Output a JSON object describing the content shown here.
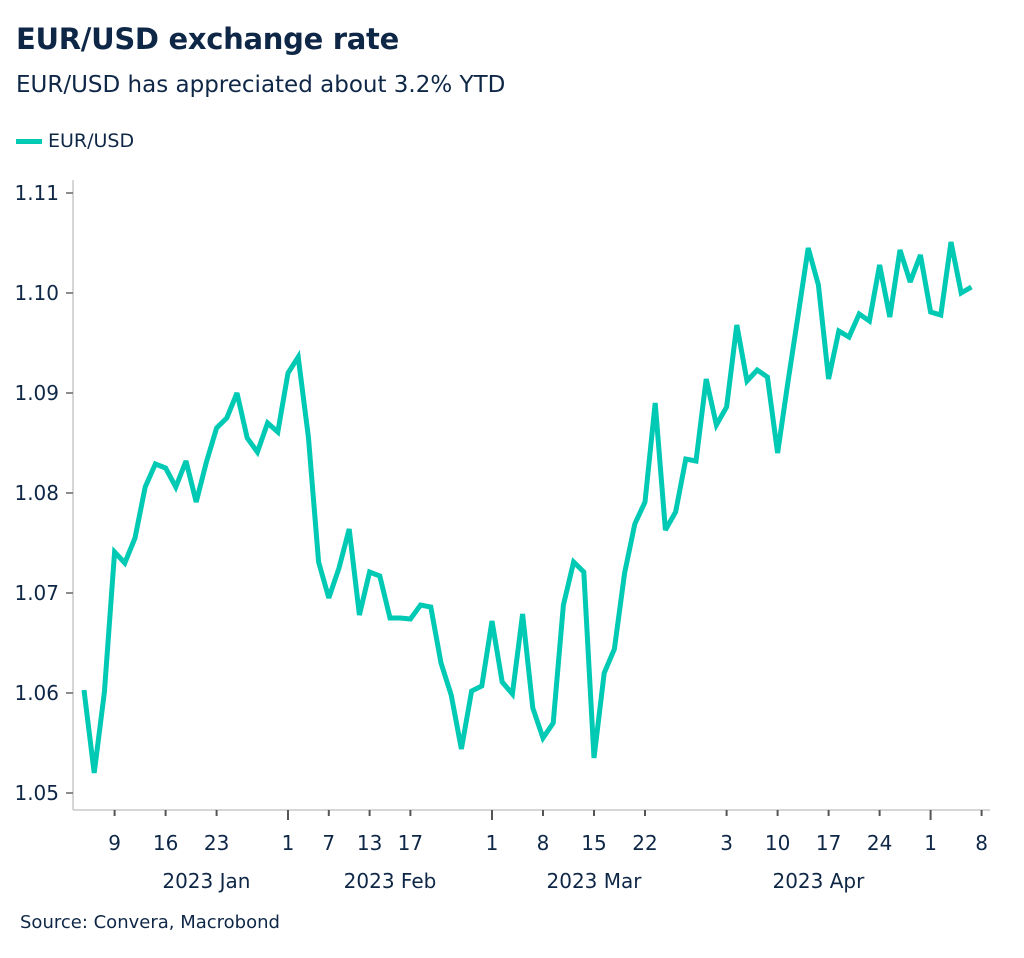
{
  "chart_data": {
    "type": "line",
    "title": "EUR/USD exchange rate",
    "subtitle": "EUR/USD has appreciated about 3.2% YTD",
    "source": "Source: Convera, Macrobond",
    "legend": "top-left",
    "grid": false,
    "line_color": "#00c9b4",
    "text_color": "#0f2747",
    "ylim": [
      1.05,
      1.11
    ],
    "yticks": [
      "1.05",
      "1.06",
      "1.07",
      "1.08",
      "1.09",
      "1.10",
      "1.11"
    ],
    "xticks": [
      {
        "date": "2023-01-09",
        "label": "9"
      },
      {
        "date": "2023-01-16",
        "label": "16"
      },
      {
        "date": "2023-01-23",
        "label": "23"
      },
      {
        "date": "2023-02-01",
        "label": "1"
      },
      {
        "date": "2023-02-07",
        "label": "7"
      },
      {
        "date": "2023-02-13",
        "label": "13"
      },
      {
        "date": "2023-02-17",
        "label": "17"
      },
      {
        "date": "2023-03-01",
        "label": "1"
      },
      {
        "date": "2023-03-08",
        "label": "8"
      },
      {
        "date": "2023-03-15",
        "label": "15"
      },
      {
        "date": "2023-03-22",
        "label": "22"
      },
      {
        "date": "2023-04-03",
        "label": "3"
      },
      {
        "date": "2023-04-10",
        "label": "10"
      },
      {
        "date": "2023-04-17",
        "label": "17"
      },
      {
        "date": "2023-04-24",
        "label": "24"
      },
      {
        "date": "2023-05-01",
        "label": "1"
      },
      {
        "date": "2023-05-08",
        "label": "8"
      }
    ],
    "month_labels": [
      {
        "label": "2023 Jan",
        "date": "2023-01-20"
      },
      {
        "label": "2023 Feb",
        "date": "2023-02-15"
      },
      {
        "label": "2023 Mar",
        "date": "2023-03-15"
      },
      {
        "label": "2023 Apr",
        "date": "2023-04-14"
      }
    ],
    "series": [
      {
        "name": "EUR/USD",
        "x": [
          "2023-01-04",
          "2023-01-05",
          "2023-01-06",
          "2023-01-09",
          "2023-01-10",
          "2023-01-11",
          "2023-01-12",
          "2023-01-13",
          "2023-01-16",
          "2023-01-17",
          "2023-01-18",
          "2023-01-19",
          "2023-01-20",
          "2023-01-23",
          "2023-01-24",
          "2023-01-25",
          "2023-01-26",
          "2023-01-27",
          "2023-01-30",
          "2023-01-31",
          "2023-02-01",
          "2023-02-02",
          "2023-02-03",
          "2023-02-06",
          "2023-02-07",
          "2023-02-08",
          "2023-02-09",
          "2023-02-10",
          "2023-02-13",
          "2023-02-14",
          "2023-02-15",
          "2023-02-16",
          "2023-02-17",
          "2023-02-20",
          "2023-02-21",
          "2023-02-22",
          "2023-02-23",
          "2023-02-24",
          "2023-02-27",
          "2023-02-28",
          "2023-03-01",
          "2023-03-02",
          "2023-03-03",
          "2023-03-06",
          "2023-03-07",
          "2023-03-08",
          "2023-03-09",
          "2023-03-10",
          "2023-03-13",
          "2023-03-14",
          "2023-03-15",
          "2023-03-16",
          "2023-03-17",
          "2023-03-20",
          "2023-03-21",
          "2023-03-22",
          "2023-03-23",
          "2023-03-24",
          "2023-03-27",
          "2023-03-28",
          "2023-03-29",
          "2023-03-30",
          "2023-03-31",
          "2023-04-03",
          "2023-04-04",
          "2023-04-05",
          "2023-04-06",
          "2023-04-07",
          "2023-04-10",
          "2023-04-11",
          "2023-04-12",
          "2023-04-13",
          "2023-04-14",
          "2023-04-17",
          "2023-04-18",
          "2023-04-19",
          "2023-04-20",
          "2023-04-21",
          "2023-04-24",
          "2023-04-25",
          "2023-04-26",
          "2023-04-27",
          "2023-04-28",
          "2023-05-01",
          "2023-05-02",
          "2023-05-03",
          "2023-05-04",
          "2023-05-05"
        ],
        "values": [
          1.0603,
          1.052,
          1.0601,
          1.0741,
          1.073,
          1.0755,
          1.0806,
          1.0829,
          1.0825,
          1.0806,
          1.0832,
          1.0791,
          1.0831,
          1.0865,
          1.0875,
          1.09,
          1.0855,
          1.0841,
          1.087,
          1.0861,
          1.092,
          1.0936,
          1.0856,
          1.0731,
          1.0695,
          1.0725,
          1.0764,
          1.0678,
          1.0721,
          1.0717,
          1.0675,
          1.0675,
          1.0674,
          1.0688,
          1.0686,
          1.063,
          1.0598,
          1.0544,
          1.0602,
          1.0607,
          1.0672,
          1.0611,
          1.0599,
          1.0679,
          1.0585,
          1.0555,
          1.057,
          1.0688,
          1.0731,
          1.0721,
          1.0535,
          1.062,
          1.0644,
          1.072,
          1.0769,
          1.0791,
          1.089,
          1.0763,
          1.0781,
          1.0834,
          1.0832,
          1.0914,
          1.0868,
          1.0886,
          1.0968,
          1.0912,
          1.0923,
          1.0916,
          1.084,
          1.091,
          1.0977,
          1.1045,
          1.1008,
          1.0914,
          1.0962,
          1.0956,
          1.0979,
          1.0972,
          1.1028,
          1.0976,
          1.1043,
          1.1011,
          1.1038,
          1.0981,
          1.0978,
          1.1051,
          1.1,
          1.1006
        ]
      }
    ]
  }
}
